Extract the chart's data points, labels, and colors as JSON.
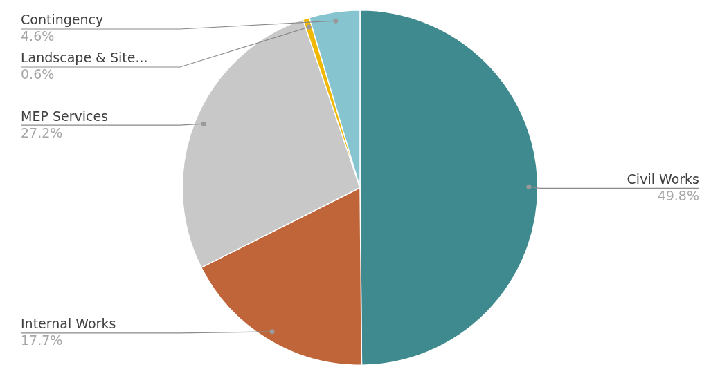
{
  "chart_data": {
    "type": "pie",
    "categories": [
      "Civil Works",
      "Internal Works",
      "MEP Services",
      "Landscape & Site...",
      "Contingency"
    ],
    "values": [
      49.8,
      17.7,
      27.2,
      0.6,
      4.6
    ],
    "value_labels": [
      "49.8%",
      "17.7%",
      "27.2%",
      "0.6%",
      "4.6%"
    ],
    "colors": [
      "#3f8a8f",
      "#c0653a",
      "#c8c8c8",
      "#f0b800",
      "#86c4d0"
    ],
    "legend": false
  }
}
